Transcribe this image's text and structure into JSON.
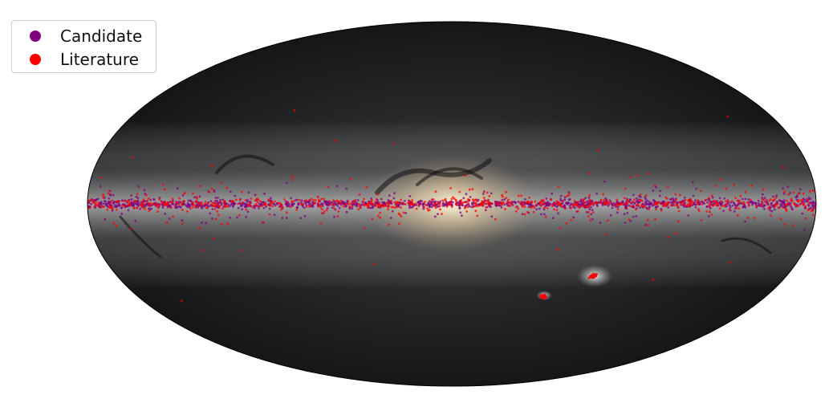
{
  "chart_data": {
    "type": "scatter",
    "projection": "aitoff",
    "background": "all-sky stellar density map (Milky Way)",
    "title": "",
    "xlabel": "",
    "ylabel": "",
    "xlim": [
      -180,
      180
    ],
    "ylim": [
      -90,
      90
    ],
    "grid": false,
    "legend_placement": "top-left",
    "series": [
      {
        "name": "Candidate",
        "color": "#800080",
        "distribution": "concentrated in the Galactic plane",
        "density_regions": [
          {
            "l": [
              -180,
              180
            ],
            "b": [
              -3,
              3
            ],
            "share": 0.8
          },
          {
            "l": [
              -180,
              180
            ],
            "b": [
              -12,
              12
            ],
            "share": 0.2
          }
        ]
      },
      {
        "name": "Literature",
        "color": "#ff0000",
        "distribution": "Galactic plane plus Magellanic Clouds and sparse high-latitude points",
        "density_regions": [
          {
            "l": [
              -180,
              180
            ],
            "b": [
              -4,
              4
            ],
            "share": 0.6
          },
          {
            "l": [
              -180,
              180
            ],
            "b": [
              -15,
              15
            ],
            "share": 0.25
          },
          {
            "l": [
              -180,
              180
            ],
            "b": [
              -70,
              70
            ],
            "share": 0.05
          }
        ],
        "clusters": [
          {
            "label": "Large Magellanic Cloud",
            "l": -79.5,
            "b": -32.9
          },
          {
            "label": "Small Magellanic Cloud",
            "l": -57.2,
            "b": -44.3
          }
        ]
      }
    ]
  }
}
